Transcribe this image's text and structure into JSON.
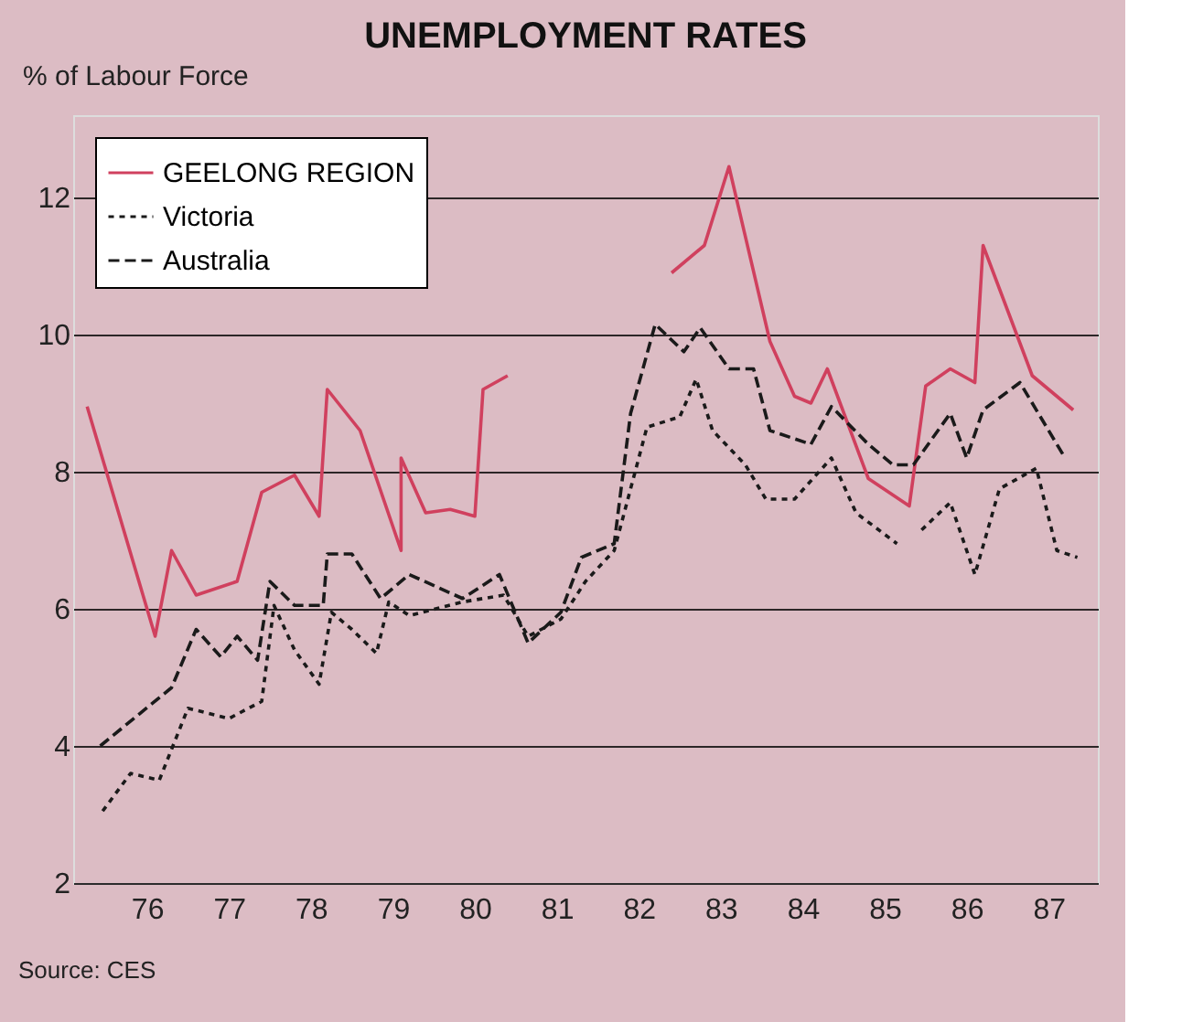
{
  "chart_data": {
    "type": "line",
    "title": "UNEMPLOYMENT RATES",
    "ylabel": "% of Labour Force",
    "annotations": [
      "Source: CES"
    ],
    "xlim": [
      75.1,
      87.6
    ],
    "xticks": [
      76,
      77,
      78,
      79,
      80,
      81,
      82,
      83,
      84,
      85,
      86,
      87
    ],
    "ylim": [
      2,
      13.2
    ],
    "yticks": [
      2,
      4,
      6,
      8,
      10,
      12
    ],
    "grid": "y",
    "legend": "top left",
    "marker": "none",
    "series": [
      {
        "name": "GEELONG REGION",
        "color": "#d0405e",
        "line_style": "solid",
        "x": [
          75.27,
          76.1,
          76.3,
          76.6,
          77.1,
          77.4,
          77.8,
          78.1,
          78.2,
          78.6,
          79.1,
          79.1,
          79.4,
          79.7,
          80.0,
          80.1,
          80.4,
          81.4,
          82.4,
          82.8,
          83.1,
          83.6,
          83.9,
          84.1,
          84.3,
          84.8,
          85.3,
          85.5,
          85.8,
          86.1,
          86.2,
          86.8,
          87.3
        ],
        "values": [
          8.95,
          5.6,
          6.85,
          6.2,
          6.4,
          7.7,
          7.95,
          7.35,
          9.2,
          8.6,
          6.85,
          8.2,
          7.4,
          7.45,
          7.35,
          9.2,
          9.4,
          null,
          10.9,
          11.3,
          12.45,
          9.9,
          9.1,
          9.0,
          9.5,
          7.9,
          7.5,
          9.25,
          9.5,
          9.3,
          11.3,
          9.4,
          8.9
        ]
      },
      {
        "name": "Victoria",
        "color": "#1a1a1a",
        "line_style": "dotted",
        "x": [
          75.46,
          75.8,
          76.15,
          76.5,
          77.0,
          77.4,
          77.55,
          77.8,
          78.1,
          78.25,
          78.5,
          78.8,
          78.95,
          79.2,
          79.85,
          80.35,
          80.65,
          81.05,
          81.35,
          81.7,
          82.1,
          82.5,
          82.7,
          82.9,
          83.3,
          83.55,
          83.9,
          84.35,
          84.65,
          85.15,
          85.3,
          85.45,
          85.8,
          86.1,
          86.4,
          86.85,
          87.1,
          87.35
        ],
        "values": [
          3.05,
          3.6,
          3.5,
          4.55,
          4.4,
          4.65,
          6.05,
          5.4,
          4.9,
          5.95,
          5.7,
          5.35,
          6.1,
          5.9,
          6.1,
          6.2,
          5.6,
          5.85,
          6.4,
          6.85,
          8.65,
          8.8,
          9.35,
          8.6,
          8.1,
          7.6,
          7.6,
          8.2,
          7.4,
          6.95,
          null,
          7.15,
          7.55,
          6.5,
          7.75,
          8.05,
          6.85,
          6.75
        ]
      },
      {
        "name": "Australia",
        "color": "#1a1a1a",
        "line_style": "dashed",
        "x": [
          75.43,
          76.3,
          76.6,
          76.9,
          77.1,
          77.35,
          77.5,
          77.8,
          78.15,
          78.2,
          78.5,
          78.85,
          79.2,
          79.85,
          80.3,
          80.65,
          81.05,
          81.3,
          81.7,
          81.9,
          82.2,
          82.55,
          82.75,
          83.1,
          83.4,
          83.6,
          84.1,
          84.35,
          84.8,
          85.1,
          85.35,
          85.8,
          86.0,
          86.2,
          86.65,
          87.2
        ],
        "values": [
          4.0,
          4.85,
          5.7,
          5.3,
          5.6,
          5.25,
          6.4,
          6.05,
          6.05,
          6.8,
          6.8,
          6.15,
          6.5,
          6.15,
          6.5,
          5.5,
          5.95,
          6.75,
          6.95,
          8.85,
          10.15,
          9.75,
          10.1,
          9.5,
          9.5,
          8.6,
          8.4,
          8.95,
          8.4,
          8.1,
          8.1,
          8.85,
          8.2,
          8.9,
          9.3,
          8.2
        ]
      }
    ]
  }
}
